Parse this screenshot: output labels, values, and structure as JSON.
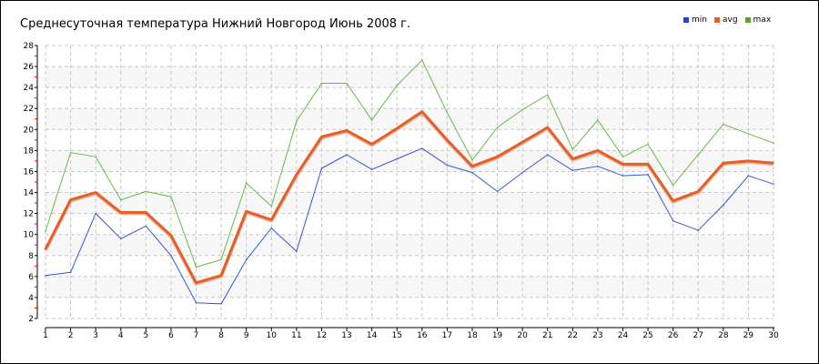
{
  "chart_data": {
    "type": "line",
    "title": "Среднесуточная температура Нижний Новгород  Июнь 2008 г.",
    "xlabel": "",
    "ylabel": "",
    "x": [
      1,
      2,
      3,
      4,
      5,
      6,
      7,
      8,
      9,
      10,
      11,
      12,
      13,
      14,
      15,
      16,
      17,
      18,
      19,
      20,
      21,
      22,
      23,
      24,
      25,
      26,
      27,
      28,
      29,
      30
    ],
    "ylim": [
      2,
      28
    ],
    "yticks": [
      2,
      4,
      6,
      8,
      10,
      12,
      14,
      16,
      18,
      20,
      22,
      24,
      26,
      28
    ],
    "grid": true,
    "legend_position": "top-right",
    "series": [
      {
        "name": "min",
        "color": "#3355dd",
        "values": [
          6.1,
          6.4,
          12.0,
          9.6,
          10.8,
          8.0,
          3.5,
          3.4,
          7.6,
          10.6,
          8.4,
          16.3,
          17.6,
          16.2,
          17.2,
          18.2,
          16.6,
          15.9,
          14.1,
          15.9,
          17.6,
          16.1,
          16.5,
          15.6,
          15.7,
          11.3,
          10.4,
          12.8,
          15.6,
          14.8
        ]
      },
      {
        "name": "avg",
        "color": "#e4602a",
        "values": [
          8.6,
          13.3,
          14.0,
          12.1,
          12.1,
          9.9,
          5.4,
          6.1,
          12.2,
          11.4,
          15.7,
          19.3,
          19.9,
          18.6,
          20.1,
          21.7,
          19.0,
          16.5,
          17.4,
          18.8,
          20.2,
          17.2,
          18.0,
          16.7,
          16.7,
          13.2,
          14.1,
          16.8,
          17.0,
          16.8
        ]
      },
      {
        "name": "max",
        "color": "#66bb44",
        "values": [
          10.3,
          17.8,
          17.4,
          13.3,
          14.1,
          13.6,
          6.9,
          7.6,
          14.9,
          12.7,
          20.8,
          24.4,
          24.4,
          20.9,
          24.2,
          26.6,
          21.6,
          17.1,
          20.2,
          21.9,
          23.3,
          18.1,
          20.9,
          17.4,
          18.6,
          14.7,
          17.6,
          20.5,
          19.6,
          18.7
        ]
      }
    ]
  }
}
